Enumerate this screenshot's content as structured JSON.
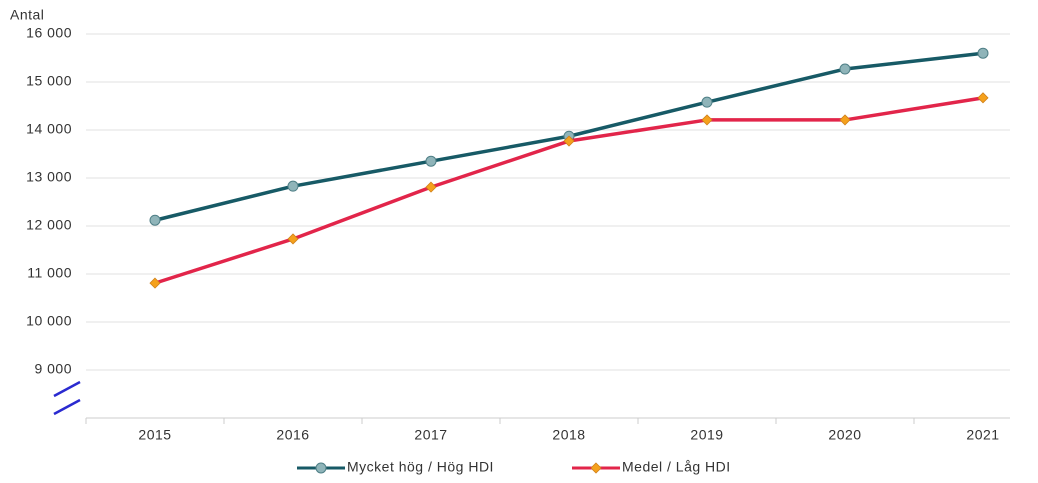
{
  "chart_data": {
    "type": "line",
    "y_label": "Antal",
    "categories": [
      "2015",
      "2016",
      "2017",
      "2018",
      "2019",
      "2020",
      "2021"
    ],
    "series": [
      {
        "name": "Mycket hög / Hög HDI",
        "color": "#175a66",
        "marker_color": "#8fb4b9",
        "marker": "circle",
        "values": [
          12120,
          12830,
          13350,
          13870,
          14580,
          15270,
          15600
        ]
      },
      {
        "name": "Medel / Låg HDI",
        "color": "#e2254a",
        "marker_color": "#f5a11c",
        "marker": "diamond",
        "values": [
          10810,
          11730,
          12810,
          13770,
          14210,
          14210,
          14670
        ]
      }
    ],
    "ylim": [
      8000,
      16000
    ],
    "yticks": [
      {
        "value": 9000,
        "label": "9 000"
      },
      {
        "value": 10000,
        "label": "10 000"
      },
      {
        "value": 11000,
        "label": "11 000"
      },
      {
        "value": 12000,
        "label": "12 000"
      },
      {
        "value": 13000,
        "label": "13 000"
      },
      {
        "value": 14000,
        "label": "14 000"
      },
      {
        "value": 15000,
        "label": "15 000"
      },
      {
        "value": 16000,
        "label": "16 000"
      }
    ],
    "grid": true
  }
}
